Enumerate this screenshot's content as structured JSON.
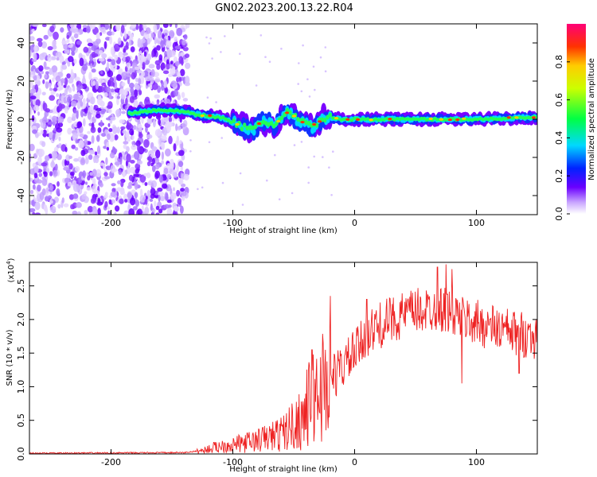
{
  "title": "GN02.2023.200.13.22.R04",
  "colors": {
    "snr_line": "#ee2222",
    "axes": "#000000"
  },
  "chart_data": [
    {
      "type": "heatmap",
      "name": "spectrogram",
      "xlabel": "Height of straight line (km)",
      "ylabel": "Frequency (Hz)",
      "xlim": [
        -267,
        150
      ],
      "ylim": [
        -50,
        50
      ],
      "xticks": [
        -200,
        -100,
        0,
        100
      ],
      "xtick_labels": [
        "-200",
        "-100",
        "0",
        "100"
      ],
      "yticks": [
        -40,
        -20,
        0,
        20,
        40
      ],
      "ytick_labels": [
        "-40",
        "-20",
        "0",
        "20",
        "40"
      ],
      "colorscale": "rainbow",
      "colorbar": {
        "label": "Normalized spectral amplitude",
        "range": [
          0.0,
          1.0
        ],
        "ticks": [
          0.0,
          0.2,
          0.4,
          0.6,
          0.8
        ],
        "tick_labels": [
          "0.0",
          "0.2",
          "0.4",
          "0.6",
          "0.8"
        ]
      },
      "noise_region_x": [
        -267,
        -137
      ],
      "signal_center_track": [
        {
          "x": -185,
          "y": 3
        },
        {
          "x": -160,
          "y": 5
        },
        {
          "x": -140,
          "y": 4
        },
        {
          "x": -125,
          "y": 2
        },
        {
          "x": -110,
          "y": 1
        },
        {
          "x": -95,
          "y": -3
        },
        {
          "x": -85,
          "y": -6
        },
        {
          "x": -75,
          "y": -1
        },
        {
          "x": -65,
          "y": -3
        },
        {
          "x": -55,
          "y": 4
        },
        {
          "x": -45,
          "y": -1
        },
        {
          "x": -35,
          "y": -4
        },
        {
          "x": -25,
          "y": 1
        },
        {
          "x": -10,
          "y": 0
        },
        {
          "x": 0,
          "y": 0
        },
        {
          "x": 50,
          "y": 0
        },
        {
          "x": 100,
          "y": 0
        },
        {
          "x": 150,
          "y": 1
        }
      ]
    },
    {
      "type": "line",
      "name": "snr",
      "xlabel": "Height of straight line (km)",
      "ylabel": "SNR (10 * v/v)",
      "multiplier_label": "(x10",
      "multiplier_exp": "4",
      "xlim": [
        -267,
        150
      ],
      "ylim": [
        0,
        2.85
      ],
      "xticks": [
        -200,
        -100,
        0,
        100
      ],
      "xtick_labels": [
        "-200",
        "-100",
        "0",
        "100"
      ],
      "yticks": [
        0.0,
        0.5,
        1.0,
        1.5,
        2.0,
        2.5
      ],
      "ytick_labels": [
        "0.0",
        "0.5",
        "1.0",
        "1.5",
        "2.0",
        "2.5"
      ],
      "envelope": [
        {
          "x": -267,
          "y": 0.01
        },
        {
          "x": -140,
          "y": 0.02
        },
        {
          "x": -125,
          "y": 0.05
        },
        {
          "x": -110,
          "y": 0.12
        },
        {
          "x": -95,
          "y": 0.15
        },
        {
          "x": -80,
          "y": 0.2
        },
        {
          "x": -60,
          "y": 0.3
        },
        {
          "x": -45,
          "y": 0.5
        },
        {
          "x": -35,
          "y": 0.8
        },
        {
          "x": -25,
          "y": 1.05
        },
        {
          "x": -15,
          "y": 1.2
        },
        {
          "x": 0,
          "y": 1.5
        },
        {
          "x": 10,
          "y": 1.75
        },
        {
          "x": 20,
          "y": 1.9
        },
        {
          "x": 30,
          "y": 2.0
        },
        {
          "x": 45,
          "y": 2.1
        },
        {
          "x": 60,
          "y": 2.15
        },
        {
          "x": 75,
          "y": 2.15
        },
        {
          "x": 90,
          "y": 2.0
        },
        {
          "x": 110,
          "y": 1.9
        },
        {
          "x": 130,
          "y": 1.8
        },
        {
          "x": 150,
          "y": 1.75
        }
      ],
      "peaks": [
        {
          "x": 68,
          "y": 2.78
        },
        {
          "x": 75,
          "y": 2.82
        },
        {
          "x": 80,
          "y": 2.75
        },
        {
          "x": -20,
          "y": 2.35
        },
        {
          "x": -35,
          "y": 1.55
        },
        {
          "x": 10,
          "y": 2.3
        },
        {
          "x": 88,
          "y": 1.05
        },
        {
          "x": 135,
          "y": 1.2
        }
      ]
    }
  ]
}
